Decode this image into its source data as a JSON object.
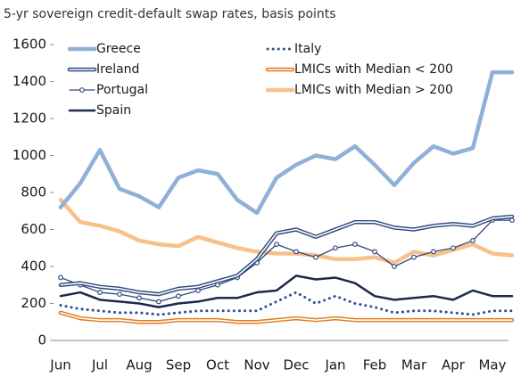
{
  "chart_data": {
    "type": "line",
    "title": "5-yr sovereign credit-default swap rates, basis points",
    "categories": [
      "Jun",
      null,
      "Jul",
      null,
      "Aug",
      null,
      "Sep",
      null,
      "Oct",
      null,
      "Nov",
      null,
      "Dec",
      null,
      "Jan",
      null,
      "Feb",
      null,
      "Mar",
      null,
      "Apr",
      null,
      "May",
      null
    ],
    "ylim": [
      0,
      1600
    ],
    "yticks": [
      0,
      200,
      400,
      600,
      800,
      1000,
      1200,
      1400,
      1600
    ],
    "series": [
      {
        "name": "Greece",
        "color": "#8fb0d8",
        "style": "thick",
        "label_color": "#1a1a1a",
        "values": [
          720,
          850,
          1030,
          820,
          780,
          720,
          880,
          920,
          900,
          760,
          690,
          880,
          950,
          1000,
          980,
          1050,
          950,
          840,
          960,
          1050,
          1010,
          1040,
          1450,
          1450
        ]
      },
      {
        "name": "Ireland",
        "color": "#2f4a7f",
        "style": "double",
        "label_color": "#1a1a1a",
        "values": [
          300,
          310,
          290,
          280,
          260,
          250,
          280,
          290,
          320,
          350,
          440,
          580,
          600,
          560,
          600,
          640,
          640,
          610,
          600,
          620,
          630,
          620,
          660,
          670
        ]
      },
      {
        "name": "Portugal",
        "color": "#2f4a7f",
        "style": "marker",
        "label_color": "#1a1a1a",
        "values": [
          340,
          300,
          260,
          250,
          230,
          210,
          240,
          270,
          300,
          340,
          420,
          520,
          480,
          450,
          500,
          520,
          480,
          400,
          450,
          480,
          500,
          540,
          650,
          650
        ]
      },
      {
        "name": "Spain",
        "color": "#1b2a4a",
        "style": "solid",
        "label_color": "#1a1a1a",
        "values": [
          240,
          260,
          220,
          210,
          200,
          180,
          200,
          210,
          230,
          230,
          260,
          270,
          350,
          330,
          340,
          310,
          240,
          220,
          230,
          240,
          220,
          270,
          240,
          240
        ]
      },
      {
        "name": "Italy",
        "color": "#2f4f8f",
        "style": "dotted",
        "label_color": "#1a1a1a",
        "values": [
          190,
          170,
          160,
          150,
          150,
          140,
          150,
          160,
          160,
          160,
          160,
          210,
          260,
          200,
          240,
          200,
          180,
          150,
          160,
          160,
          150,
          140,
          160,
          160
        ]
      },
      {
        "name": "LMICs with Median < 200",
        "color": "#e07b20",
        "style": "double",
        "label_color": "#e07b20",
        "values": [
          150,
          120,
          110,
          110,
          100,
          100,
          110,
          110,
          110,
          100,
          100,
          110,
          120,
          110,
          120,
          110,
          110,
          110,
          110,
          110,
          110,
          110,
          110,
          110
        ]
      },
      {
        "name": "LMICs with Median > 200",
        "color": "#f8c08a",
        "style": "thick",
        "label_color": "#e07b20",
        "values": [
          760,
          640,
          620,
          590,
          540,
          520,
          510,
          560,
          530,
          500,
          480,
          470,
          470,
          460,
          440,
          440,
          450,
          420,
          480,
          460,
          490,
          520,
          470,
          460
        ]
      }
    ]
  }
}
